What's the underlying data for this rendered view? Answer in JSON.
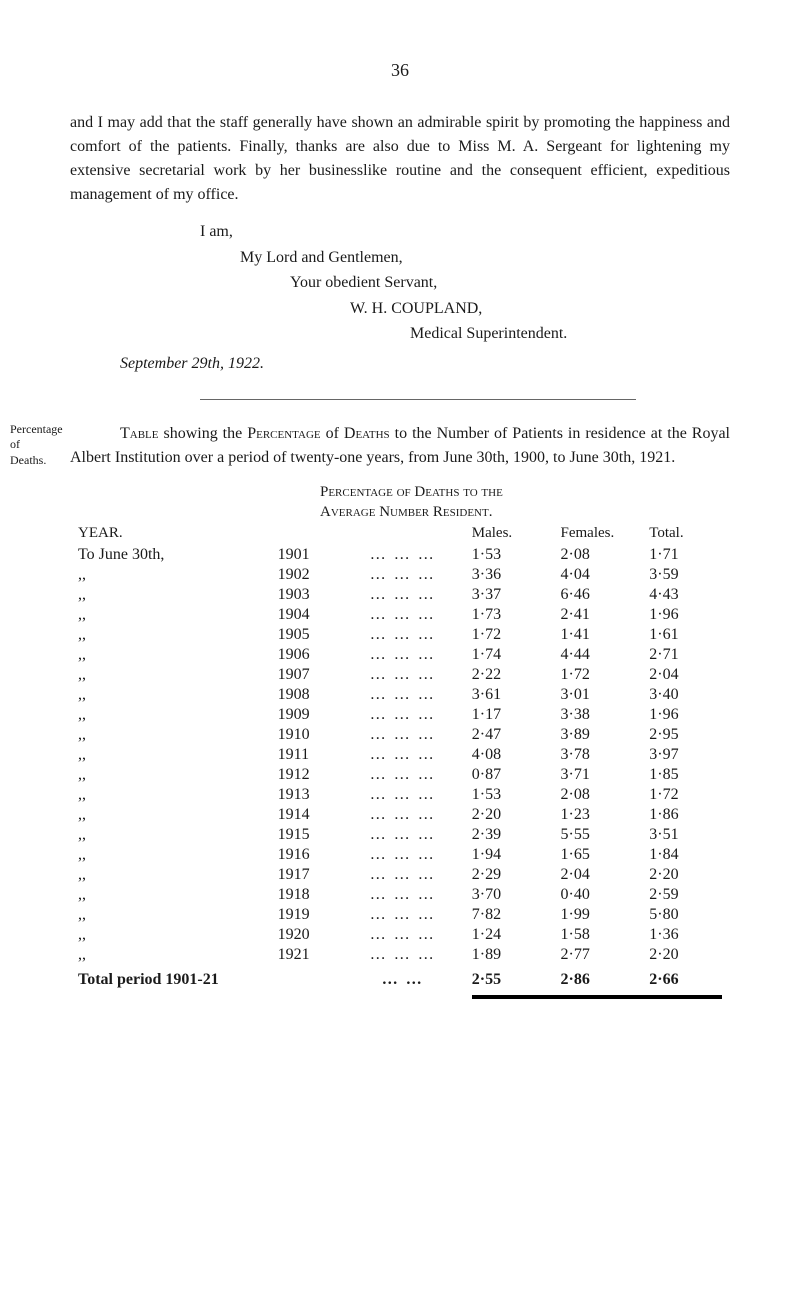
{
  "page_number": "36",
  "intro_paragraph": "and I may add that the staff generally have shown an admirable spirit by promoting the happiness and comfort of the patients. Finally, thanks are also due to Miss M. A. Sergeant for lightening my extensive secretarial work by her businesslike routine and the consequent efficient, expeditious management of my office.",
  "closing": {
    "iam": "I am,",
    "mylord": "My Lord and Gentlemen,",
    "servant": "Your obedient Servant,",
    "name": "W. H. COUPLAND,",
    "title": "Medical Superintendent.",
    "date_prefix": "September 29th, 1922."
  },
  "margin_note": {
    "line1": "Percentage",
    "line2": "of",
    "line3": "Deaths."
  },
  "table_intro_pre": "Table",
  "table_intro_mid1": " showing the ",
  "table_intro_pc": "Percentage",
  "table_intro_mid2": " of ",
  "table_intro_deaths": "Deaths",
  "table_intro_post": " to the Number of Patients in residence at the Royal Albert Institution over a period of twenty-one years, from June 30th, 1900, to June 30th, 1921.",
  "table_heading_line1": "Percentage of Deaths to the",
  "table_heading_line2": "Average Number Resident.",
  "columns": {
    "year": "YEAR.",
    "males": "Males.",
    "females": "Females.",
    "total": "Total."
  },
  "first_row_label": "To June 30th,",
  "ditto": ",,",
  "dots": "… … …",
  "dots_short": "… …",
  "rows": [
    {
      "year": "1901",
      "males": "1·53",
      "females": "2·08",
      "total": "1·71"
    },
    {
      "year": "1902",
      "males": "3·36",
      "females": "4·04",
      "total": "3·59"
    },
    {
      "year": "1903",
      "males": "3·37",
      "females": "6·46",
      "total": "4·43"
    },
    {
      "year": "1904",
      "males": "1·73",
      "females": "2·41",
      "total": "1·96"
    },
    {
      "year": "1905",
      "males": "1·72",
      "females": "1·41",
      "total": "1·61"
    },
    {
      "year": "1906",
      "males": "1·74",
      "females": "4·44",
      "total": "2·71"
    },
    {
      "year": "1907",
      "males": "2·22",
      "females": "1·72",
      "total": "2·04"
    },
    {
      "year": "1908",
      "males": "3·61",
      "females": "3·01",
      "total": "3·40"
    },
    {
      "year": "1909",
      "males": "1·17",
      "females": "3·38",
      "total": "1·96"
    },
    {
      "year": "1910",
      "males": "2·47",
      "females": "3·89",
      "total": "2·95"
    },
    {
      "year": "1911",
      "males": "4·08",
      "females": "3·78",
      "total": "3·97"
    },
    {
      "year": "1912",
      "males": "0·87",
      "females": "3·71",
      "total": "1·85"
    },
    {
      "year": "1913",
      "males": "1·53",
      "females": "2·08",
      "total": "1·72"
    },
    {
      "year": "1914",
      "males": "2·20",
      "females": "1·23",
      "total": "1·86"
    },
    {
      "year": "1915",
      "males": "2·39",
      "females": "5·55",
      "total": "3·51"
    },
    {
      "year": "1916",
      "males": "1·94",
      "females": "1·65",
      "total": "1·84"
    },
    {
      "year": "1917",
      "males": "2·29",
      "females": "2·04",
      "total": "2·20"
    },
    {
      "year": "1918",
      "males": "3·70",
      "females": "0·40",
      "total": "2·59"
    },
    {
      "year": "1919",
      "males": "7·82",
      "females": "1·99",
      "total": "5·80"
    },
    {
      "year": "1920",
      "males": "1·24",
      "females": "1·58",
      "total": "1·36"
    },
    {
      "year": "1921",
      "males": "1·89",
      "females": "2·77",
      "total": "2·20"
    }
  ],
  "total_row": {
    "label": "Total period 1901-21",
    "males": "2·55",
    "females": "2·86",
    "total": "2·66"
  }
}
